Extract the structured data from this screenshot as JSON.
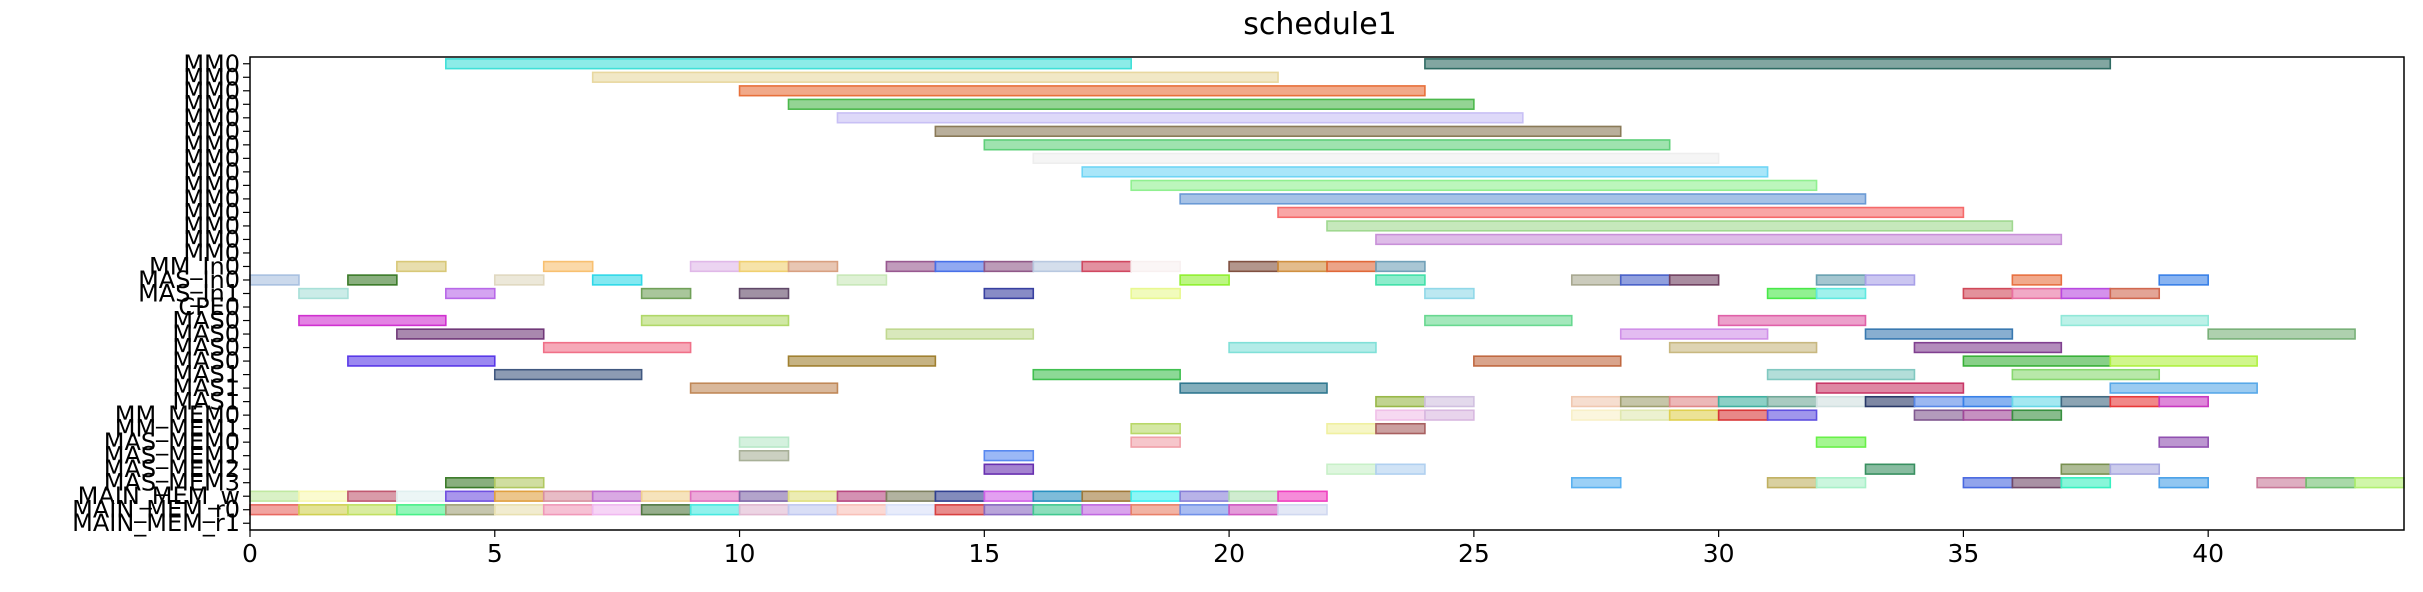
{
  "chart_data": {
    "type": "gantt",
    "title": "schedule1",
    "xlim": [
      0,
      44
    ],
    "x_ticks": [
      0,
      5,
      10,
      15,
      20,
      25,
      30,
      35,
      40
    ],
    "row_labels": [
      "MM0",
      "MM0",
      "MM0",
      "MM0",
      "MM0",
      "MM0",
      "MM0",
      "MM0",
      "MM0",
      "MM0",
      "MM0",
      "MM0",
      "MM0",
      "MM0",
      "MM0",
      "MM_In0",
      "MAS_In0",
      "MAS_In1",
      "CPE0",
      "MAS0",
      "MAS0",
      "MAS0",
      "MAS0",
      "MAS1",
      "MAS1",
      "MAS1",
      "MM_MEM0",
      "MM_MEM1",
      "MAS_MEM0",
      "MAS_MEM1",
      "MAS_MEM2",
      "MAS_MEM3",
      "MAIN_MEM_w",
      "MAIN_MEM_r0",
      "MAIN_MEM_r1"
    ],
    "bars": [
      {
        "row": 0,
        "start": 4,
        "end": 18,
        "color": "#40e0d8"
      },
      {
        "row": 0,
        "start": 24,
        "end": 38,
        "color": "#2f6b63"
      },
      {
        "row": 1,
        "start": 7,
        "end": 21,
        "color": "#e8d8a0"
      },
      {
        "row": 2,
        "start": 10,
        "end": 24,
        "color": "#e8703a"
      },
      {
        "row": 3,
        "start": 11,
        "end": 25,
        "color": "#4cb84c"
      },
      {
        "row": 4,
        "start": 12,
        "end": 26,
        "color": "#c8c0f5"
      },
      {
        "row": 5,
        "start": 14,
        "end": 28,
        "color": "#8a7a58"
      },
      {
        "row": 6,
        "start": 15,
        "end": 29,
        "color": "#5fd07a"
      },
      {
        "row": 7,
        "start": 16,
        "end": 30,
        "color": "#eeeeee"
      },
      {
        "row": 8,
        "start": 17,
        "end": 31,
        "color": "#6fd5f5"
      },
      {
        "row": 9,
        "start": 18,
        "end": 32,
        "color": "#90f090"
      },
      {
        "row": 10,
        "start": 19,
        "end": 33,
        "color": "#6a9ad5"
      },
      {
        "row": 11,
        "start": 21,
        "end": 35,
        "color": "#f56a6a"
      },
      {
        "row": 12,
        "start": 22,
        "end": 36,
        "color": "#a0d890"
      },
      {
        "row": 13,
        "start": 23,
        "end": 37,
        "color": "#c890d8"
      },
      {
        "row": 15,
        "start": 3,
        "end": 4,
        "color": "#d8c878"
      },
      {
        "row": 15,
        "start": 6,
        "end": 7,
        "color": "#f8c070"
      },
      {
        "row": 15,
        "start": 9,
        "end": 10,
        "color": "#e0b8e8"
      },
      {
        "row": 15,
        "start": 10,
        "end": 11,
        "color": "#f0d070"
      },
      {
        "row": 15,
        "start": 11,
        "end": 12,
        "color": "#d8a080"
      },
      {
        "row": 15,
        "start": 13,
        "end": 14,
        "color": "#985890"
      },
      {
        "row": 15,
        "start": 14,
        "end": 15,
        "color": "#4870e8"
      },
      {
        "row": 15,
        "start": 15,
        "end": 16,
        "color": "#905888"
      },
      {
        "row": 15,
        "start": 16,
        "end": 17,
        "color": "#b8c8e0"
      },
      {
        "row": 15,
        "start": 17,
        "end": 18,
        "color": "#d04860"
      },
      {
        "row": 15,
        "start": 18,
        "end": 19,
        "color": "#f8f0f0"
      },
      {
        "row": 15,
        "start": 20,
        "end": 21,
        "color": "#805040"
      },
      {
        "row": 15,
        "start": 21,
        "end": 22,
        "color": "#d09040"
      },
      {
        "row": 15,
        "start": 22,
        "end": 23,
        "color": "#e06838"
      },
      {
        "row": 15,
        "start": 23,
        "end": 24,
        "color": "#70a0b8"
      },
      {
        "row": 16,
        "start": 0,
        "end": 1,
        "color": "#a8c0e0"
      },
      {
        "row": 16,
        "start": 2,
        "end": 3,
        "color": "#3a7a28"
      },
      {
        "row": 16,
        "start": 5,
        "end": 6,
        "color": "#e0d8c0"
      },
      {
        "row": 16,
        "start": 7,
        "end": 8,
        "color": "#30d8e8"
      },
      {
        "row": 16,
        "start": 12,
        "end": 13,
        "color": "#c8e8b8"
      },
      {
        "row": 16,
        "start": 19,
        "end": 20,
        "color": "#90f030"
      },
      {
        "row": 16,
        "start": 23,
        "end": 24,
        "color": "#40e0a8"
      },
      {
        "row": 16,
        "start": 27,
        "end": 28,
        "color": "#a8a890"
      },
      {
        "row": 16,
        "start": 28,
        "end": 29,
        "color": "#4860c8"
      },
      {
        "row": 16,
        "start": 29,
        "end": 30,
        "color": "#704060"
      },
      {
        "row": 16,
        "start": 32,
        "end": 33,
        "color": "#68a0b0"
      },
      {
        "row": 16,
        "start": 33,
        "end": 34,
        "color": "#a8a0e8"
      },
      {
        "row": 16,
        "start": 36,
        "end": 37,
        "color": "#e87040"
      },
      {
        "row": 16,
        "start": 39,
        "end": 40,
        "color": "#3880e8"
      },
      {
        "row": 17,
        "start": 1,
        "end": 2,
        "color": "#a8e0d8"
      },
      {
        "row": 17,
        "start": 4,
        "end": 5,
        "color": "#b868e8"
      },
      {
        "row": 17,
        "start": 8,
        "end": 9,
        "color": "#70a058"
      },
      {
        "row": 17,
        "start": 10,
        "end": 11,
        "color": "#604868"
      },
      {
        "row": 17,
        "start": 15,
        "end": 16,
        "color": "#3840a0"
      },
      {
        "row": 17,
        "start": 18,
        "end": 19,
        "color": "#e8f890"
      },
      {
        "row": 17,
        "start": 24,
        "end": 25,
        "color": "#90d8e8"
      },
      {
        "row": 17,
        "start": 31,
        "end": 32,
        "color": "#48e848"
      },
      {
        "row": 17,
        "start": 32,
        "end": 33,
        "color": "#60e8e0"
      },
      {
        "row": 17,
        "start": 35,
        "end": 36,
        "color": "#d04858"
      },
      {
        "row": 17,
        "start": 36,
        "end": 37,
        "color": "#e870a0"
      },
      {
        "row": 17,
        "start": 37,
        "end": 38,
        "color": "#b848e0"
      },
      {
        "row": 17,
        "start": 38,
        "end": 39,
        "color": "#d06850"
      },
      {
        "row": 19,
        "start": 1,
        "end": 4,
        "color": "#d030d0"
      },
      {
        "row": 19,
        "start": 8,
        "end": 11,
        "color": "#b0d868"
      },
      {
        "row": 19,
        "start": 24,
        "end": 27,
        "color": "#68d890"
      },
      {
        "row": 19,
        "start": 30,
        "end": 33,
        "color": "#e060a8"
      },
      {
        "row": 19,
        "start": 37,
        "end": 40,
        "color": "#90e8d8"
      },
      {
        "row": 20,
        "start": 3,
        "end": 6,
        "color": "#703878"
      },
      {
        "row": 20,
        "start": 13,
        "end": 16,
        "color": "#c0d890"
      },
      {
        "row": 20,
        "start": 28,
        "end": 31,
        "color": "#d090e8"
      },
      {
        "row": 20,
        "start": 33,
        "end": 36,
        "color": "#3878b0"
      },
      {
        "row": 20,
        "start": 40,
        "end": 43,
        "color": "#78b078"
      },
      {
        "row": 21,
        "start": 6,
        "end": 9,
        "color": "#f07088"
      },
      {
        "row": 21,
        "start": 20,
        "end": 23,
        "color": "#80e0d8"
      },
      {
        "row": 21,
        "start": 29,
        "end": 32,
        "color": "#c8b880"
      },
      {
        "row": 21,
        "start": 34,
        "end": 37,
        "color": "#804090"
      },
      {
        "row": 22,
        "start": 2,
        "end": 5,
        "color": "#5838e8"
      },
      {
        "row": 22,
        "start": 11,
        "end": 14,
        "color": "#a08030"
      },
      {
        "row": 22,
        "start": 25,
        "end": 28,
        "color": "#c06840"
      },
      {
        "row": 22,
        "start": 35,
        "end": 38,
        "color": "#38b038"
      },
      {
        "row": 22,
        "start": 38,
        "end": 41,
        "color": "#b0f040"
      },
      {
        "row": 23,
        "start": 5,
        "end": 8,
        "color": "#405880"
      },
      {
        "row": 23,
        "start": 16,
        "end": 19,
        "color": "#40c050"
      },
      {
        "row": 23,
        "start": 31,
        "end": 34,
        "color": "#80c8c0"
      },
      {
        "row": 23,
        "start": 36,
        "end": 39,
        "color": "#88d870"
      },
      {
        "row": 24,
        "start": 9,
        "end": 12,
        "color": "#c08858"
      },
      {
        "row": 24,
        "start": 19,
        "end": 22,
        "color": "#307890"
      },
      {
        "row": 24,
        "start": 32,
        "end": 35,
        "color": "#c83868"
      },
      {
        "row": 24,
        "start": 38,
        "end": 41,
        "color": "#58a8e8"
      },
      {
        "row": 25,
        "start": 23,
        "end": 24,
        "color": "#98b848"
      },
      {
        "row": 25,
        "start": 24,
        "end": 25,
        "color": "#d0c0e0"
      },
      {
        "row": 25,
        "start": 27,
        "end": 28,
        "color": "#f0c8b0"
      },
      {
        "row": 25,
        "start": 28,
        "end": 29,
        "color": "#a0a070"
      },
      {
        "row": 25,
        "start": 29,
        "end": 30,
        "color": "#e08888"
      },
      {
        "row": 25,
        "start": 30,
        "end": 31,
        "color": "#40b0a0"
      },
      {
        "row": 25,
        "start": 31,
        "end": 32,
        "color": "#70a898"
      },
      {
        "row": 25,
        "start": 32,
        "end": 33,
        "color": "#d0e0e0"
      },
      {
        "row": 25,
        "start": 33,
        "end": 34,
        "color": "#283868"
      },
      {
        "row": 25,
        "start": 34,
        "end": 35,
        "color": "#5888e8"
      },
      {
        "row": 25,
        "start": 35,
        "end": 36,
        "color": "#3880e8"
      },
      {
        "row": 25,
        "start": 36,
        "end": 37,
        "color": "#68d8e8"
      },
      {
        "row": 25,
        "start": 37,
        "end": 38,
        "color": "#406880"
      },
      {
        "row": 25,
        "start": 38,
        "end": 39,
        "color": "#e83838"
      },
      {
        "row": 25,
        "start": 39,
        "end": 40,
        "color": "#c838c0"
      },
      {
        "row": 26,
        "start": 23,
        "end": 24,
        "color": "#f0c0e8"
      },
      {
        "row": 26,
        "start": 24,
        "end": 25,
        "color": "#d8b8e0"
      },
      {
        "row": 26,
        "start": 27,
        "end": 28,
        "color": "#f8f0c8"
      },
      {
        "row": 26,
        "start": 28,
        "end": 29,
        "color": "#e0e8b0"
      },
      {
        "row": 26,
        "start": 29,
        "end": 30,
        "color": "#e0d050"
      },
      {
        "row": 26,
        "start": 30,
        "end": 31,
        "color": "#d83838"
      },
      {
        "row": 26,
        "start": 31,
        "end": 32,
        "color": "#6050e0"
      },
      {
        "row": 26,
        "start": 34,
        "end": 35,
        "color": "#805890"
      },
      {
        "row": 26,
        "start": 35,
        "end": 36,
        "color": "#a04898"
      },
      {
        "row": 26,
        "start": 36,
        "end": 37,
        "color": "#389040"
      },
      {
        "row": 27,
        "start": 18,
        "end": 19,
        "color": "#b8d868"
      },
      {
        "row": 27,
        "start": 22,
        "end": 23,
        "color": "#f0f0a0"
      },
      {
        "row": 27,
        "start": 23,
        "end": 24,
        "color": "#a86060"
      },
      {
        "row": 28,
        "start": 10,
        "end": 11,
        "color": "#b8e8c8"
      },
      {
        "row": 28,
        "start": 18,
        "end": 19,
        "color": "#f0a0a8"
      },
      {
        "row": 28,
        "start": 32,
        "end": 33,
        "color": "#68f048"
      },
      {
        "row": 28,
        "start": 39,
        "end": 40,
        "color": "#9050b0"
      },
      {
        "row": 29,
        "start": 10,
        "end": 11,
        "color": "#a8b098"
      },
      {
        "row": 29,
        "start": 15,
        "end": 16,
        "color": "#5888f0"
      },
      {
        "row": 30,
        "start": 15,
        "end": 16,
        "color": "#6830b0"
      },
      {
        "row": 30,
        "start": 22,
        "end": 23,
        "color": "#c8f0c8"
      },
      {
        "row": 30,
        "start": 23,
        "end": 24,
        "color": "#b0d0f0"
      },
      {
        "row": 30,
        "start": 33,
        "end": 34,
        "color": "#389060"
      },
      {
        "row": 30,
        "start": 37,
        "end": 38,
        "color": "#789050"
      },
      {
        "row": 30,
        "start": 38,
        "end": 39,
        "color": "#a8a8e0"
      },
      {
        "row": 31,
        "start": 4,
        "end": 5,
        "color": "#3a7a28"
      },
      {
        "row": 31,
        "start": 5,
        "end": 6,
        "color": "#b0c860"
      },
      {
        "row": 31,
        "start": 27,
        "end": 28,
        "color": "#58b0f0"
      },
      {
        "row": 31,
        "start": 31,
        "end": 32,
        "color": "#c0b060"
      },
      {
        "row": 31,
        "start": 32,
        "end": 33,
        "color": "#a8f0c8"
      },
      {
        "row": 31,
        "start": 35,
        "end": 36,
        "color": "#4868e0"
      },
      {
        "row": 31,
        "start": 36,
        "end": 37,
        "color": "#704868"
      },
      {
        "row": 31,
        "start": 37,
        "end": 38,
        "color": "#38f0c0"
      },
      {
        "row": 31,
        "start": 39,
        "end": 40,
        "color": "#48a0e8"
      },
      {
        "row": 31,
        "start": 41,
        "end": 42,
        "color": "#c87898"
      },
      {
        "row": 31,
        "start": 42,
        "end": 43,
        "color": "#70c070"
      },
      {
        "row": 31,
        "start": 43,
        "end": 44,
        "color": "#b0f070"
      },
      {
        "row": 32,
        "start": 0,
        "end": 1,
        "color": "#c0e8a0"
      },
      {
        "row": 32,
        "start": 1,
        "end": 2,
        "color": "#f8f8b0"
      },
      {
        "row": 32,
        "start": 2,
        "end": 3,
        "color": "#c05870"
      },
      {
        "row": 32,
        "start": 3,
        "end": 4,
        "color": "#e0f0f0"
      },
      {
        "row": 32,
        "start": 4,
        "end": 5,
        "color": "#7050e0"
      },
      {
        "row": 32,
        "start": 5,
        "end": 6,
        "color": "#e0a040"
      },
      {
        "row": 32,
        "start": 6,
        "end": 7,
        "color": "#d890a0"
      },
      {
        "row": 32,
        "start": 7,
        "end": 8,
        "color": "#c070d0"
      },
      {
        "row": 32,
        "start": 8,
        "end": 9,
        "color": "#f0d090"
      },
      {
        "row": 32,
        "start": 9,
        "end": 10,
        "color": "#e070c0"
      },
      {
        "row": 32,
        "start": 10,
        "end": 11,
        "color": "#8068a8"
      },
      {
        "row": 32,
        "start": 11,
        "end": 12,
        "color": "#e0e080"
      },
      {
        "row": 32,
        "start": 12,
        "end": 13,
        "color": "#b84880"
      },
      {
        "row": 32,
        "start": 13,
        "end": 14,
        "color": "#7e8060"
      },
      {
        "row": 32,
        "start": 14,
        "end": 15,
        "color": "#304090"
      },
      {
        "row": 32,
        "start": 15,
        "end": 16,
        "color": "#d060e8"
      },
      {
        "row": 32,
        "start": 16,
        "end": 17,
        "color": "#2890c0"
      },
      {
        "row": 32,
        "start": 17,
        "end": 18,
        "color": "#a07838"
      },
      {
        "row": 32,
        "start": 18,
        "end": 19,
        "color": "#40f0f0"
      },
      {
        "row": 32,
        "start": 19,
        "end": 20,
        "color": "#8880d8"
      },
      {
        "row": 32,
        "start": 20,
        "end": 21,
        "color": "#b0e0b0"
      },
      {
        "row": 32,
        "start": 21,
        "end": 22,
        "color": "#f040c0"
      },
      {
        "row": 33,
        "start": 0,
        "end": 1,
        "color": "#e86860"
      },
      {
        "row": 33,
        "start": 1,
        "end": 2,
        "color": "#d0d050"
      },
      {
        "row": 33,
        "start": 2,
        "end": 3,
        "color": "#c0e060"
      },
      {
        "row": 33,
        "start": 3,
        "end": 4,
        "color": "#48f088"
      },
      {
        "row": 33,
        "start": 4,
        "end": 5,
        "color": "#a0a078"
      },
      {
        "row": 33,
        "start": 5,
        "end": 6,
        "color": "#e8e0b0"
      },
      {
        "row": 33,
        "start": 6,
        "end": 7,
        "color": "#f098b8"
      },
      {
        "row": 33,
        "start": 7,
        "end": 8,
        "color": "#f0b8f0"
      },
      {
        "row": 33,
        "start": 8,
        "end": 9,
        "color": "#507840"
      },
      {
        "row": 33,
        "start": 9,
        "end": 10,
        "color": "#48e8e0"
      },
      {
        "row": 33,
        "start": 10,
        "end": 11,
        "color": "#e0b8d0"
      },
      {
        "row": 33,
        "start": 11,
        "end": 12,
        "color": "#c0c8f0"
      },
      {
        "row": 33,
        "start": 12,
        "end": 13,
        "color": "#f8c0b8"
      },
      {
        "row": 33,
        "start": 13,
        "end": 14,
        "color": "#d8e0f8"
      },
      {
        "row": 33,
        "start": 14,
        "end": 15,
        "color": "#d84040"
      },
      {
        "row": 33,
        "start": 15,
        "end": 16,
        "color": "#8868c0"
      },
      {
        "row": 33,
        "start": 16,
        "end": 17,
        "color": "#40c890"
      },
      {
        "row": 33,
        "start": 17,
        "end": 18,
        "color": "#c068e0"
      },
      {
        "row": 33,
        "start": 18,
        "end": 19,
        "color": "#e88068"
      },
      {
        "row": 33,
        "start": 19,
        "end": 20,
        "color": "#7090e8"
      },
      {
        "row": 33,
        "start": 20,
        "end": 21,
        "color": "#d058c0"
      },
      {
        "row": 33,
        "start": 21,
        "end": 22,
        "color": "#d0d8f0"
      }
    ]
  }
}
